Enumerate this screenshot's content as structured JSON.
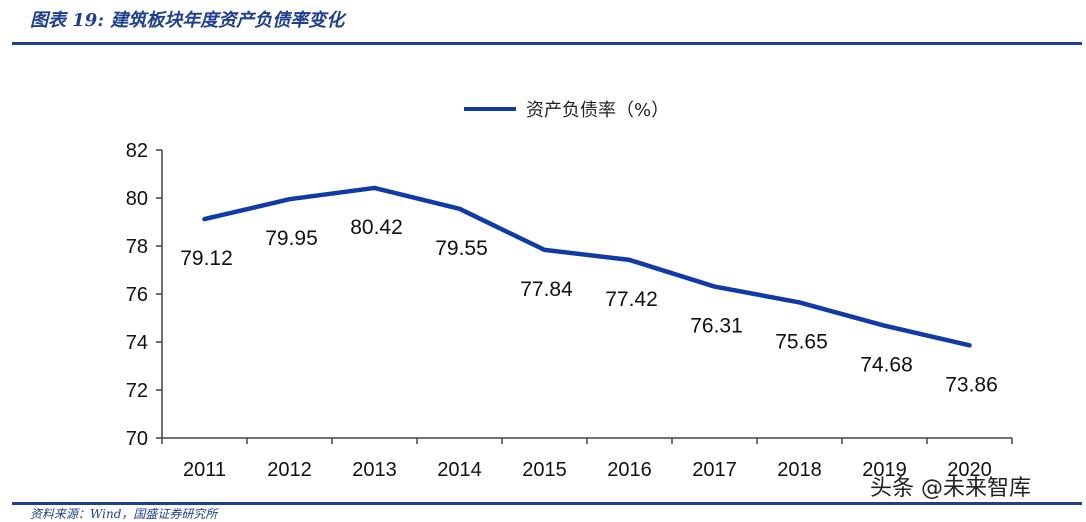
{
  "header": {
    "title": "图表 19: 建筑板块年度资产负债率变化"
  },
  "footer": {
    "source": "资料来源：Wind，国盛证券研究所"
  },
  "watermark": "头条 @未来智库",
  "colors": {
    "line": "#0f3aa8",
    "rule": "#1f3f8f"
  },
  "chart_data": {
    "type": "line",
    "title": "",
    "xlabel": "",
    "ylabel": "",
    "categories": [
      "2011",
      "2012",
      "2013",
      "2014",
      "2015",
      "2016",
      "2017",
      "2018",
      "2019",
      "2020"
    ],
    "series": [
      {
        "name": "资产负债率（%）",
        "values": [
          79.12,
          79.95,
          80.42,
          79.55,
          77.84,
          77.42,
          76.31,
          75.65,
          74.68,
          73.86
        ]
      }
    ],
    "ylim": [
      70,
      82
    ],
    "yticks": [
      70,
      72,
      74,
      76,
      78,
      80,
      82
    ],
    "grid": false,
    "legend_position": "top-center",
    "data_labels": true
  }
}
